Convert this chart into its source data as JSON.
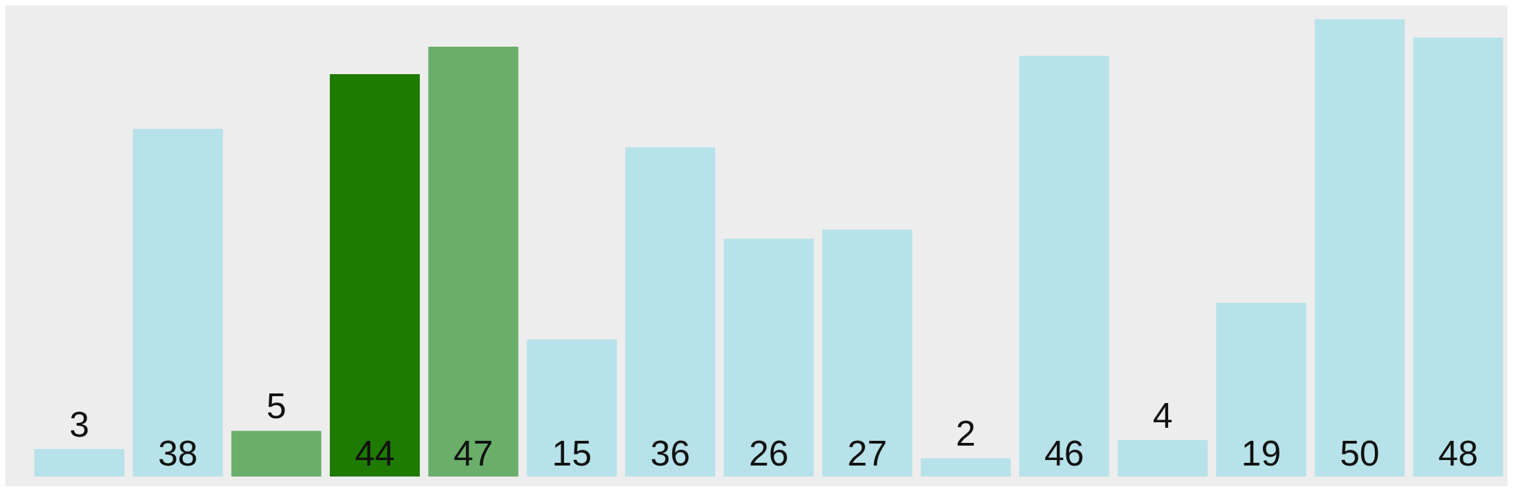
{
  "chart_data": {
    "type": "bar",
    "categories": [
      null,
      null,
      null,
      null,
      null,
      null,
      null,
      null,
      null,
      null,
      null,
      null,
      null,
      null,
      null
    ],
    "values": [
      3,
      38,
      5,
      44,
      47,
      15,
      36,
      26,
      27,
      2,
      46,
      4,
      19,
      50,
      48
    ],
    "colors": [
      "#b7e2e9",
      "#b7e2e9",
      "#6aae6a",
      "#1e7a00",
      "#6aae6a",
      "#b7e2e9",
      "#b7e2e9",
      "#b7e2e9",
      "#b7e2e9",
      "#b7e2e9",
      "#b7e2e9",
      "#b7e2e9",
      "#b7e2e9",
      "#b7e2e9",
      "#b7e2e9"
    ],
    "data_labels": true
  }
}
